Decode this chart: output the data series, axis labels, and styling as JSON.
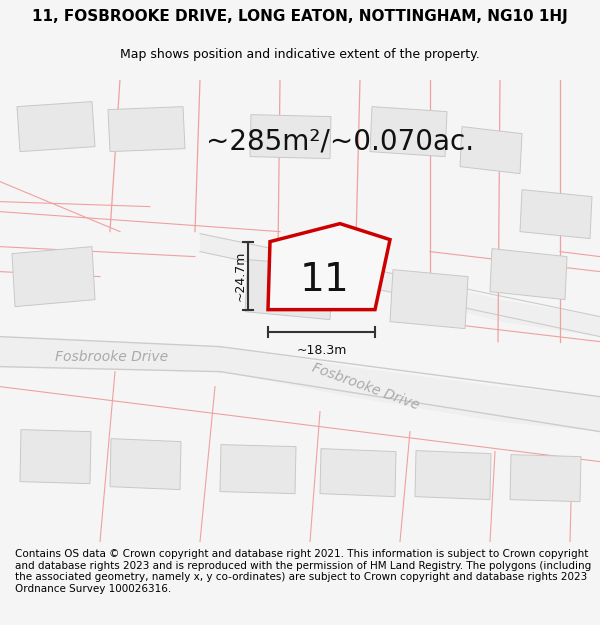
{
  "title": "11, FOSBROOKE DRIVE, LONG EATON, NOTTINGHAM, NG10 1HJ",
  "subtitle": "Map shows position and indicative extent of the property.",
  "area_text": "~285m²/~0.070ac.",
  "plot_number": "11",
  "dim_width": "~18.3m",
  "dim_height": "~24.7m",
  "footer": "Contains OS data © Crown copyright and database right 2021. This information is subject to Crown copyright and database rights 2023 and is reproduced with the permission of HM Land Registry. The polygons (including the associated geometry, namely x, y co-ordinates) are subject to Crown copyright and database rights 2023 Ordnance Survey 100026316.",
  "bg_color": "#f5f5f5",
  "map_bg": "#ffffff",
  "plot_fill": "#f8f8f8",
  "plot_edge_color": "#cc0000",
  "pink_line_color": "#f0a0a0",
  "building_fill": "#e8e8e8",
  "building_edge": "#c8c8c8",
  "dim_line_color": "#333333",
  "road_fill": "#f0f0f0",
  "road_edge": "#d8d8d8",
  "street_label_color": "#aaaaaa",
  "title_fontsize": 11,
  "subtitle_fontsize": 9,
  "area_fontsize": 20,
  "plot_num_fontsize": 28,
  "dim_fontsize": 9,
  "footer_fontsize": 7.5,
  "street_fontsize": 10
}
